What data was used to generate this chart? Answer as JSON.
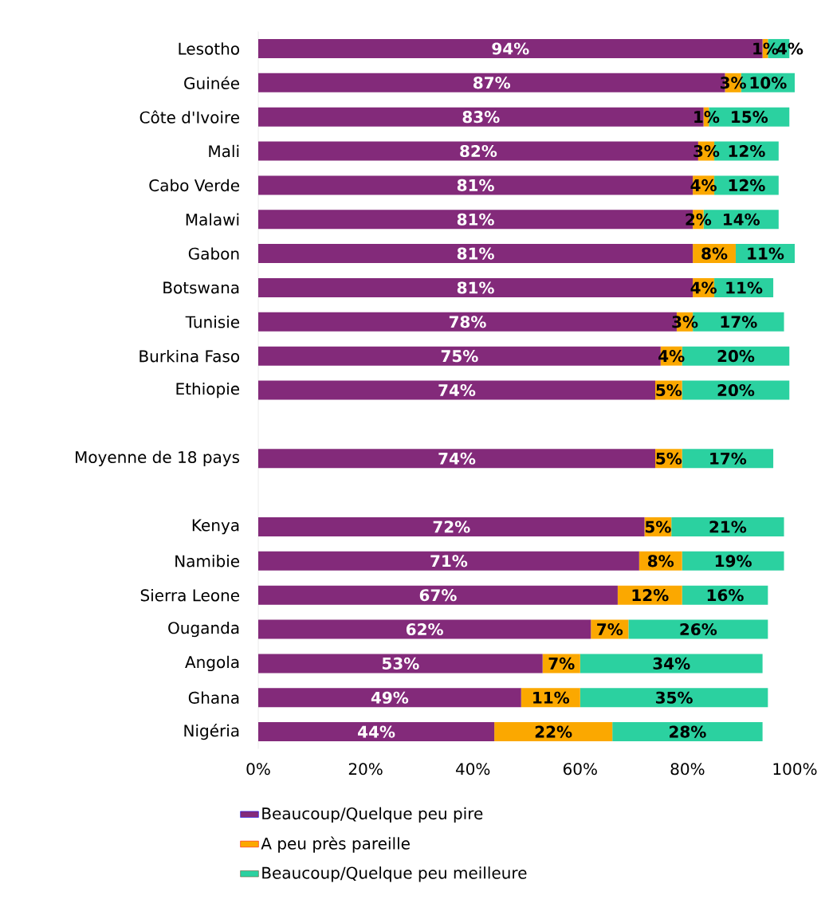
{
  "chart_data": {
    "type": "bar",
    "orientation": "horizontal",
    "stacked": true,
    "legend": "bottom",
    "categories": [
      "Lesotho",
      "Guinée",
      "Côte d'Ivoire",
      "Mali",
      "Cabo Verde",
      "Malawi",
      "Gabon",
      "Botswana",
      "Tunisie",
      "Burkina Faso",
      "Ethiopie",
      null,
      "Moyenne de 18 pays",
      null,
      "Kenya",
      "Namibie",
      "Sierra Leone",
      "Ouganda",
      "Angola",
      "Ghana",
      "Nigéria"
    ],
    "series": [
      {
        "name": "Beaucoup/Quelque peu pire",
        "color": "#832a7a",
        "values": [
          94,
          87,
          83,
          82,
          81,
          81,
          81,
          81,
          78,
          75,
          74,
          null,
          74,
          null,
          72,
          71,
          67,
          62,
          53,
          49,
          44
        ],
        "value_labels": [
          "94%",
          "87%",
          "83%",
          "82%",
          "81%",
          "81%",
          "81%",
          "81%",
          "78%",
          "75%",
          "74%",
          null,
          "74%",
          null,
          "72%",
          "71%",
          "67%",
          "62%",
          "53%",
          "49%",
          "44%"
        ]
      },
      {
        "name": "A peu près pareille",
        "color": "#fba800",
        "values": [
          1,
          3,
          1,
          3,
          4,
          2,
          8,
          4,
          3,
          4,
          5,
          null,
          5,
          null,
          5,
          8,
          12,
          7,
          7,
          11,
          22
        ],
        "value_labels": [
          "1%",
          "3%",
          "1%",
          "3%",
          "4%",
          "2%",
          "8%",
          "4%",
          "3%",
          "4%",
          "5%",
          null,
          "5%",
          null,
          "5%",
          "8%",
          "12%",
          "7%",
          "7%",
          "11%",
          "22%"
        ]
      },
      {
        "name": "Beaucoup/Quelque peu meilleure",
        "color": "#2bd1a0",
        "values": [
          4,
          10,
          15,
          12,
          12,
          14,
          11,
          11,
          17,
          20,
          20,
          null,
          17,
          null,
          21,
          19,
          16,
          26,
          34,
          35,
          28
        ],
        "value_labels": [
          "4%",
          "10%",
          "15%",
          "12%",
          "12%",
          "14%",
          "11%",
          "11%",
          "17%",
          "20%",
          "20%",
          null,
          "17%",
          null,
          "21%",
          "19%",
          "16%",
          "26%",
          "34%",
          "35%",
          "28%"
        ]
      }
    ],
    "xlim": [
      0,
      100
    ],
    "xticks": [
      {
        "value": 0,
        "label": "0%"
      },
      {
        "value": 20,
        "label": "20%"
      },
      {
        "value": 40,
        "label": "40%"
      },
      {
        "value": 60,
        "label": "60%"
      },
      {
        "value": 80,
        "label": "80%"
      },
      {
        "value": 100,
        "label": "100%"
      }
    ]
  }
}
